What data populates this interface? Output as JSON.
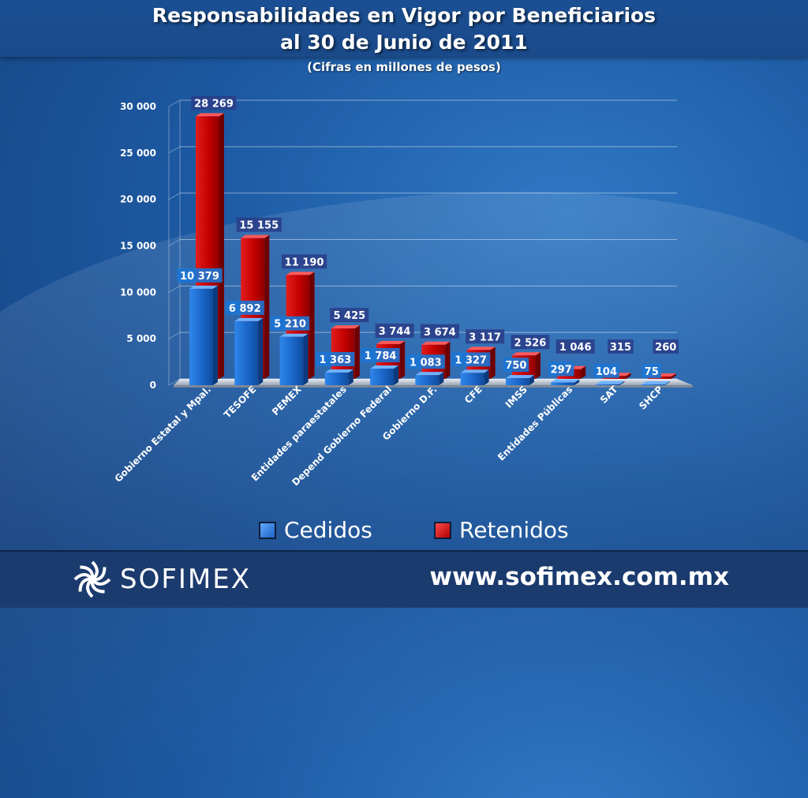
{
  "header": {
    "title_line1": "Responsabilidades en Vigor por Beneficiarios",
    "title_line2": "al 30 de Junio de 2011",
    "subtitle": "(Cifras en millones de pesos)"
  },
  "legend": {
    "cedidos_label": "Cedidos",
    "retenidos_label": "Retenidos"
  },
  "footer": {
    "logo_text": "SOFIMEX",
    "website": "www.sofimex.com.mx"
  },
  "chart_data": {
    "type": "bar",
    "title": "Responsabilidades en Vigor por Beneficiarios al 30 de Junio de 2011",
    "subtitle": "(Cifras en millones de pesos)",
    "categories": [
      "Gobierno Estatal y Mpal.",
      "TESOFE",
      "PEMEX",
      "Entidades paraestatales",
      "Depend Gobierno Federal",
      "Gobierno D.F.",
      "CFE",
      "IMSS",
      "Entidades Públicas",
      "SAT",
      "SHCP"
    ],
    "series": [
      {
        "name": "Cedidos",
        "values": [
          10379,
          6892,
          5210,
          1363,
          1784,
          1083,
          1327,
          750,
          297,
          104,
          75
        ],
        "labels": [
          "10 379",
          "6 892",
          "5 210",
          "1 363",
          "1 784",
          "1 083",
          "1 327",
          "750",
          "297",
          "104",
          "75"
        ],
        "color": "#1e6fd0"
      },
      {
        "name": "Retenidos",
        "values": [
          28269,
          15155,
          11190,
          5425,
          3744,
          3674,
          3117,
          2526,
          1046,
          315,
          260
        ],
        "labels": [
          "28 269",
          "15 155",
          "11 190",
          "5 425",
          "3 744",
          "3 674",
          "3 117",
          "2 526",
          "1 046",
          "315",
          "260"
        ],
        "color": "#cc0000"
      }
    ],
    "ylim": [
      0,
      30000
    ],
    "yticks": [
      0,
      5000,
      10000,
      15000,
      20000,
      25000,
      30000
    ],
    "ytick_labels": [
      "0",
      "5 000",
      "10 000",
      "15 000",
      "20 000",
      "25 000",
      "30 000"
    ],
    "grid": true,
    "legend_position": "bottom"
  },
  "colors": {
    "cedidos": "#1e6fd0",
    "retenidos": "#cc0000",
    "background": "#1d5aa3"
  }
}
